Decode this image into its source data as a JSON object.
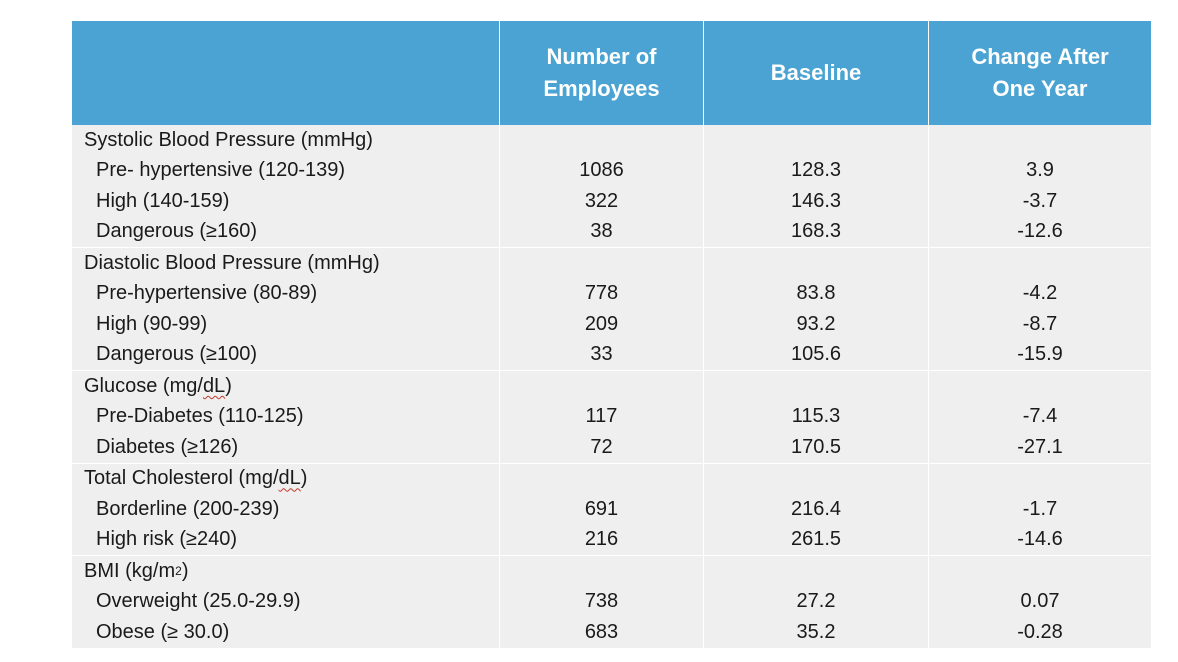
{
  "headers": {
    "c0": "",
    "c1": "Number of\nEmployees",
    "c2": "Baseline",
    "c3": "Change After\nOne Year"
  },
  "groups": [
    {
      "title": "Systolic Blood Pressure (mmHg)",
      "rows": [
        {
          "label": "Pre- hypertensive (120-139)",
          "n": "1086",
          "baseline": "128.3",
          "change": "3.9"
        },
        {
          "label": "High (140-159)",
          "n": "322",
          "baseline": "146.3",
          "change": "-3.7"
        },
        {
          "label": "Dangerous (≥160)",
          "n": "38",
          "baseline": "168.3",
          "change": "-12.6"
        }
      ]
    },
    {
      "title": "Diastolic Blood Pressure (mmHg)",
      "rows": [
        {
          "label": "Pre-hypertensive (80-89)",
          "n": "778",
          "baseline": "83.8",
          "change": "-4.2"
        },
        {
          "label": "High (90-99)",
          "n": "209",
          "baseline": "93.2",
          "change": "-8.7"
        },
        {
          "label": "Dangerous (≥100)",
          "n": "33",
          "baseline": "105.6",
          "change": "-15.9"
        }
      ]
    },
    {
      "title": "Glucose (mg/dL)",
      "title_prefix": "Glucose (mg/",
      "title_unit": "dL",
      "title_suffix": ")",
      "rows": [
        {
          "label": "Pre-Diabetes (110-125)",
          "n": "117",
          "baseline": "115.3",
          "change": "-7.4"
        },
        {
          "label": "Diabetes (≥126)",
          "n": "72",
          "baseline": "170.5",
          "change": "-27.1"
        }
      ]
    },
    {
      "title": "Total Cholesterol (mg/dL)",
      "title_prefix": "Total Cholesterol (mg/",
      "title_unit": "dL",
      "title_suffix": ")",
      "rows": [
        {
          "label": "Borderline (200-239)",
          "n": "691",
          "baseline": "216.4",
          "change": "-1.7"
        },
        {
          "label": "High risk (≥240)",
          "n": "216",
          "baseline": "261.5",
          "change": "-14.6"
        }
      ]
    },
    {
      "title": "BMI (kg/m2)",
      "title_prefix": "BMI (kg/m",
      "title_sup": "2",
      "title_suffix": ")",
      "rows": [
        {
          "label": "Overweight (25.0-29.9)",
          "n": "738",
          "baseline": "27.2",
          "change": "0.07"
        },
        {
          "label": "Obese (≥ 30.0)",
          "n": "683",
          "baseline": "35.2",
          "change": "-0.28"
        }
      ]
    }
  ]
}
